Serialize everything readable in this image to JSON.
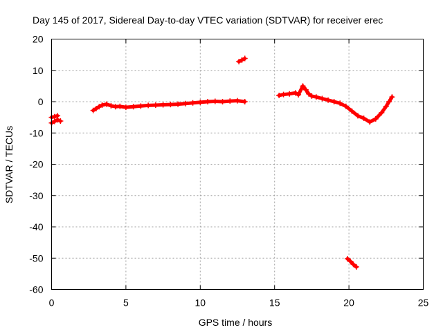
{
  "chart_data": {
    "type": "scatter",
    "title": "Day 145 of 2017, Sidereal Day-to-day VTEC variation (SDTVAR) for receiver erec",
    "xlabel": "GPS time / hours",
    "ylabel": "SDTVAR / TECUs",
    "xlim": [
      0,
      25
    ],
    "ylim": [
      -60,
      20
    ],
    "xticks": [
      0,
      5,
      10,
      15,
      20,
      25
    ],
    "yticks": [
      20,
      10,
      0,
      -10,
      -20,
      -30,
      -40,
      -50,
      -60
    ],
    "grid": true,
    "marker": "plus",
    "series": [
      {
        "name": "SDTVAR",
        "color": "#ff0000",
        "segments": [
          [
            [
              0.0,
              -5.0
            ],
            [
              0.2,
              -4.8
            ],
            [
              0.4,
              -4.5
            ]
          ],
          [
            [
              0.0,
              -6.8
            ],
            [
              0.2,
              -6.3
            ],
            [
              0.4,
              -5.8
            ],
            [
              0.6,
              -6.2
            ]
          ],
          [
            [
              2.8,
              -2.8
            ],
            [
              3.0,
              -2.2
            ],
            [
              3.2,
              -1.6
            ],
            [
              3.4,
              -1.1
            ],
            [
              3.7,
              -0.8
            ],
            [
              4.0,
              -1.3
            ],
            [
              4.3,
              -1.6
            ],
            [
              4.6,
              -1.5
            ],
            [
              5.0,
              -1.8
            ],
            [
              5.5,
              -1.6
            ],
            [
              6.0,
              -1.4
            ],
            [
              6.5,
              -1.2
            ],
            [
              7.0,
              -1.1
            ],
            [
              7.5,
              -1.0
            ],
            [
              8.0,
              -0.9
            ],
            [
              8.5,
              -0.8
            ],
            [
              9.0,
              -0.6
            ],
            [
              9.5,
              -0.4
            ],
            [
              10.0,
              -0.2
            ],
            [
              10.5,
              0.0
            ],
            [
              11.0,
              0.1
            ],
            [
              11.5,
              0.0
            ],
            [
              12.0,
              0.2
            ],
            [
              12.5,
              0.3
            ],
            [
              13.0,
              0.0
            ]
          ],
          [
            [
              12.6,
              12.8
            ],
            [
              12.8,
              13.3
            ],
            [
              13.0,
              13.8
            ]
          ],
          [
            [
              15.3,
              2.0
            ],
            [
              15.6,
              2.3
            ],
            [
              16.0,
              2.5
            ],
            [
              16.4,
              2.8
            ],
            [
              16.6,
              2.2
            ],
            [
              16.9,
              5.0
            ],
            [
              17.1,
              3.8
            ],
            [
              17.3,
              2.5
            ],
            [
              17.5,
              1.8
            ],
            [
              17.8,
              1.5
            ],
            [
              18.2,
              1.0
            ],
            [
              18.6,
              0.5
            ],
            [
              19.0,
              0.0
            ],
            [
              19.4,
              -0.5
            ],
            [
              19.8,
              -1.5
            ],
            [
              20.2,
              -3.0
            ],
            [
              20.6,
              -4.5
            ],
            [
              21.0,
              -5.3
            ],
            [
              21.4,
              -6.5
            ],
            [
              21.8,
              -5.5
            ],
            [
              22.2,
              -3.5
            ],
            [
              22.5,
              -1.5
            ],
            [
              22.7,
              0.0
            ],
            [
              22.9,
              1.5
            ]
          ],
          [
            [
              19.9,
              -50.2
            ],
            [
              20.1,
              -51.0
            ],
            [
              20.3,
              -52.0
            ],
            [
              20.5,
              -52.8
            ]
          ]
        ]
      }
    ]
  }
}
